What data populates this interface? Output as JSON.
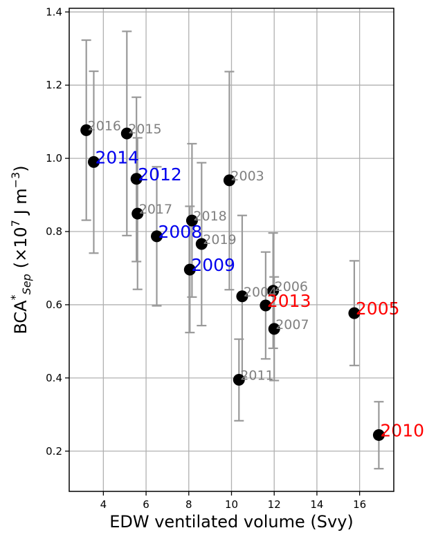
{
  "chart_data": {
    "type": "scatter",
    "title": "",
    "xlabel": "EDW ventilated volume (Svy)",
    "ylabel_parts": {
      "base": "BCA",
      "sup": "*",
      "sub": "Sep",
      "units_pre": "(×10",
      "units_exp": "7",
      "units_mid": " J m",
      "units_exp2": "−3",
      "units_post": ")"
    },
    "xlim": [
      2.4,
      17.6
    ],
    "ylim": [
      0.09,
      1.41
    ],
    "xticks": [
      4,
      6,
      8,
      10,
      12,
      14,
      16
    ],
    "yticks": [
      0.2,
      0.4,
      0.6,
      0.8,
      1.0,
      1.2,
      1.4
    ],
    "grid": true,
    "colors": {
      "marker": "#000000",
      "errorbar": "#999999",
      "grid": "#b0b0b0",
      "label_gray": "#808080",
      "label_blue": "#0000ee",
      "label_red": "#ff0000"
    },
    "points": [
      {
        "year": "2016",
        "x": 3.2,
        "y": 1.077,
        "err_low": 0.831,
        "err_high": 1.323,
        "label_color": "gray",
        "big": false
      },
      {
        "year": "2014",
        "x": 3.55,
        "y": 0.99,
        "err_low": 0.741,
        "err_high": 1.238,
        "label_color": "blue",
        "big": true
      },
      {
        "year": "2015",
        "x": 5.1,
        "y": 1.068,
        "err_low": 0.789,
        "err_high": 1.347,
        "label_color": "gray",
        "big": false
      },
      {
        "year": "2012",
        "x": 5.55,
        "y": 0.944,
        "err_low": 0.718,
        "err_high": 1.167,
        "label_color": "blue",
        "big": true
      },
      {
        "year": "2017",
        "x": 5.6,
        "y": 0.849,
        "err_low": 0.642,
        "err_high": 1.056,
        "label_color": "gray",
        "big": false
      },
      {
        "year": "2008",
        "x": 6.5,
        "y": 0.787,
        "err_low": 0.597,
        "err_high": 0.977,
        "label_color": "blue",
        "big": true
      },
      {
        "year": "2018",
        "x": 8.15,
        "y": 0.83,
        "err_low": 0.621,
        "err_high": 1.04,
        "label_color": "gray",
        "big": false
      },
      {
        "year": "2009",
        "x": 8.05,
        "y": 0.696,
        "err_low": 0.524,
        "err_high": 0.869,
        "label_color": "blue",
        "big": true
      },
      {
        "year": "2019",
        "x": 8.6,
        "y": 0.766,
        "err_low": 0.543,
        "err_high": 0.988,
        "label_color": "gray",
        "big": false
      },
      {
        "year": "2003",
        "x": 9.9,
        "y": 0.94,
        "err_low": 0.641,
        "err_high": 1.237,
        "label_color": "gray",
        "big": false
      },
      {
        "year": "2004",
        "x": 10.5,
        "y": 0.623,
        "err_low": 0.403,
        "err_high": 0.844,
        "label_color": "gray",
        "big": false
      },
      {
        "year": "2011",
        "x": 10.35,
        "y": 0.395,
        "err_low": 0.283,
        "err_high": 0.506,
        "label_color": "gray",
        "big": false
      },
      {
        "year": "2013",
        "x": 11.6,
        "y": 0.598,
        "err_low": 0.452,
        "err_high": 0.744,
        "label_color": "red",
        "big": true
      },
      {
        "year": "2006",
        "x": 11.95,
        "y": 0.638,
        "err_low": 0.481,
        "err_high": 0.796,
        "label_color": "gray",
        "big": false
      },
      {
        "year": "2007",
        "x": 12.0,
        "y": 0.534,
        "err_low": 0.393,
        "err_high": 0.676,
        "label_color": "gray",
        "big": false
      },
      {
        "year": "2005",
        "x": 15.75,
        "y": 0.577,
        "err_low": 0.434,
        "err_high": 0.72,
        "label_color": "red",
        "big": true
      },
      {
        "year": "2010",
        "x": 16.9,
        "y": 0.244,
        "err_low": 0.152,
        "err_high": 0.335,
        "label_color": "red",
        "big": true
      }
    ]
  }
}
